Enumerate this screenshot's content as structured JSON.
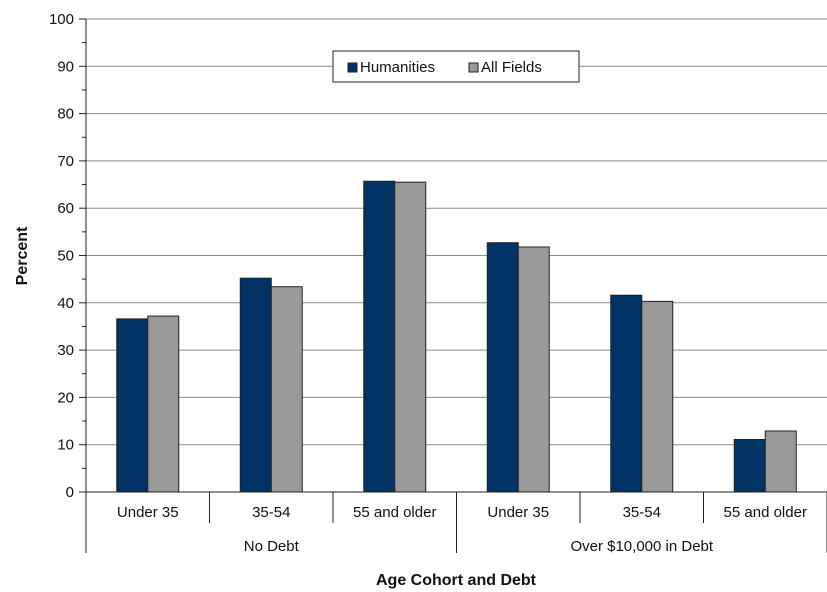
{
  "chart_data": {
    "type": "bar",
    "title": "",
    "xlabel": "Age Cohort and Debt",
    "ylabel": "Percent",
    "ylim": [
      0,
      100
    ],
    "yticks": [
      0,
      10,
      20,
      30,
      40,
      50,
      60,
      70,
      80,
      90,
      100
    ],
    "grid": true,
    "legend_position": "top-center",
    "categories": [
      "Under 35",
      "35-54",
      "55 and older",
      "Under 35",
      "35-54",
      "55 and older"
    ],
    "groups": [
      {
        "label": "No Debt",
        "categories": [
          "Under 35",
          "35-54",
          "55 and older"
        ]
      },
      {
        "label": "Over $10,000 in Debt",
        "categories": [
          "Under 35",
          "35-54",
          "55 and older"
        ]
      }
    ],
    "series": [
      {
        "name": "Humanities",
        "color": "#003366",
        "values": [
          36.6,
          45.2,
          65.7,
          52.7,
          41.6,
          11.1
        ]
      },
      {
        "name": "All Fields",
        "color": "#999999",
        "values": [
          37.2,
          43.4,
          65.5,
          51.8,
          40.3,
          12.9
        ]
      }
    ]
  }
}
